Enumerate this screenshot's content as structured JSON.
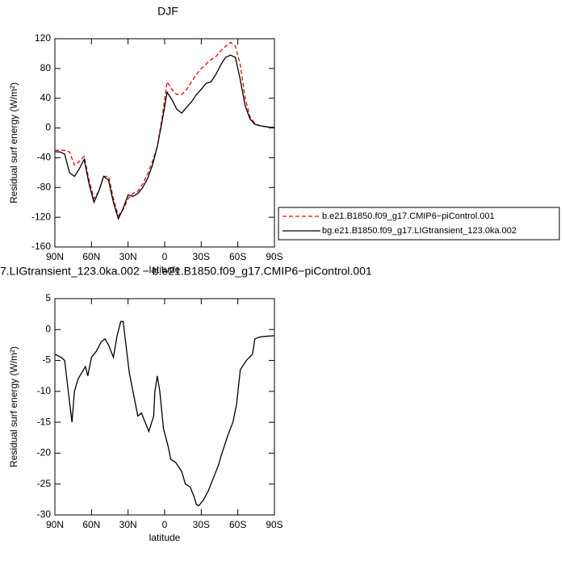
{
  "chart_data": [
    {
      "type": "line",
      "title": "DJF",
      "x_label": "latitude",
      "y_label": "Residual surf energy (W/m²)",
      "x": [
        90,
        86,
        82,
        78,
        74,
        70,
        66,
        62,
        58,
        54,
        50,
        46,
        42,
        38,
        34,
        30,
        26,
        22,
        18,
        14,
        10,
        6,
        2,
        -2,
        -6,
        -10,
        -14,
        -18,
        -22,
        -26,
        -30,
        -34,
        -38,
        -42,
        -46,
        -50,
        -54,
        -58,
        -62,
        -66,
        -70,
        -74,
        -78,
        -82,
        -86,
        -90
      ],
      "xlim": [
        90,
        -90
      ],
      "xticks": [
        {
          "value": 90,
          "label": "90N"
        },
        {
          "value": 60,
          "label": "60N"
        },
        {
          "value": 30,
          "label": "30N"
        },
        0,
        {
          "value": -30,
          "label": "30S"
        },
        {
          "value": -60,
          "label": "60S"
        },
        {
          "value": -90,
          "label": "90S"
        }
      ],
      "ylim": [
        -160,
        120
      ],
      "yticks": [
        -160,
        -120,
        -80,
        -40,
        0,
        40,
        80,
        120
      ],
      "legend": "right",
      "series": [
        {
          "name": "b.e21.B1850.f09_g17.CMIP6−piControl.001",
          "color": "#e8000b",
          "line_style": "dashed",
          "values": [
            -30,
            -30,
            -30,
            -32,
            -50,
            -45,
            -38,
            -70,
            -95,
            -85,
            -65,
            -65,
            -95,
            -118,
            -110,
            -95,
            -88,
            -85,
            -75,
            -62,
            -45,
            -25,
            15,
            62,
            52,
            45,
            45,
            52,
            62,
            72,
            80,
            86,
            92,
            96,
            104,
            110,
            115,
            110,
            85,
            40,
            15,
            6,
            3,
            2,
            1,
            0
          ]
        },
        {
          "name": "bg.e21.B1850.f09_g17.LIGtransient_123.0ka.002",
          "color": "#000000",
          "line_style": "solid",
          "values": [
            -32,
            -32,
            -35,
            -60,
            -65,
            -55,
            -42,
            -75,
            -100,
            -85,
            -65,
            -70,
            -100,
            -122,
            -108,
            -90,
            -92,
            -88,
            -80,
            -68,
            -50,
            -25,
            10,
            48,
            38,
            25,
            20,
            28,
            35,
            45,
            52,
            60,
            62,
            72,
            85,
            95,
            98,
            95,
            65,
            30,
            12,
            5,
            3,
            2,
            1,
            1
          ]
        }
      ]
    },
    {
      "type": "line",
      "title": "7.LIGtransient_123.0ka.002 − b.e21.B1850.f09_g17.CMIP6−piControl.001",
      "x_label": "latitude",
      "y_label": "Residual surf energy (W/m²)",
      "x": [
        90,
        85,
        82,
        79,
        76,
        74,
        71,
        65,
        63,
        60,
        56,
        52,
        49,
        46,
        42,
        39,
        36,
        34,
        32,
        29,
        26,
        22,
        19,
        16,
        13,
        9,
        8,
        6,
        4,
        1,
        -3,
        -5,
        -9,
        -14,
        -17,
        -21,
        -24,
        -26,
        -28,
        -32,
        -36,
        -39,
        -44,
        -47,
        -52,
        -56,
        -59,
        -62,
        -67,
        -72,
        -74,
        -78,
        -83,
        -90
      ],
      "xlim": [
        90,
        -90
      ],
      "xticks": [
        {
          "value": 90,
          "label": "90N"
        },
        {
          "value": 60,
          "label": "60N"
        },
        {
          "value": 30,
          "label": "30N"
        },
        0,
        {
          "value": -30,
          "label": "30S"
        },
        {
          "value": -60,
          "label": "60S"
        },
        {
          "value": -90,
          "label": "90S"
        }
      ],
      "ylim": [
        -30,
        5
      ],
      "yticks": [
        -30,
        -25,
        -20,
        -15,
        -10,
        -5,
        0,
        5
      ],
      "series": [
        {
          "color": "#000000",
          "line_style": "solid",
          "values": [
            -4,
            -4.5,
            -5,
            -10,
            -15,
            -10,
            -8,
            -6,
            -7.5,
            -4.5,
            -3.5,
            -2,
            -1.5,
            -2.5,
            -4.5,
            -1,
            1.3,
            1.3,
            -2,
            -7,
            -10,
            -14,
            -13.5,
            -15,
            -16.5,
            -14,
            -10,
            -7.5,
            -10,
            -16,
            -19,
            -21,
            -21.5,
            -23,
            -25,
            -25.5,
            -27,
            -28.3,
            -28.5,
            -27.5,
            -26,
            -24.5,
            -22,
            -20,
            -17,
            -15,
            -12,
            -6.5,
            -5,
            -4,
            -1.5,
            -1.2,
            -1.1,
            -1
          ]
        }
      ]
    }
  ]
}
